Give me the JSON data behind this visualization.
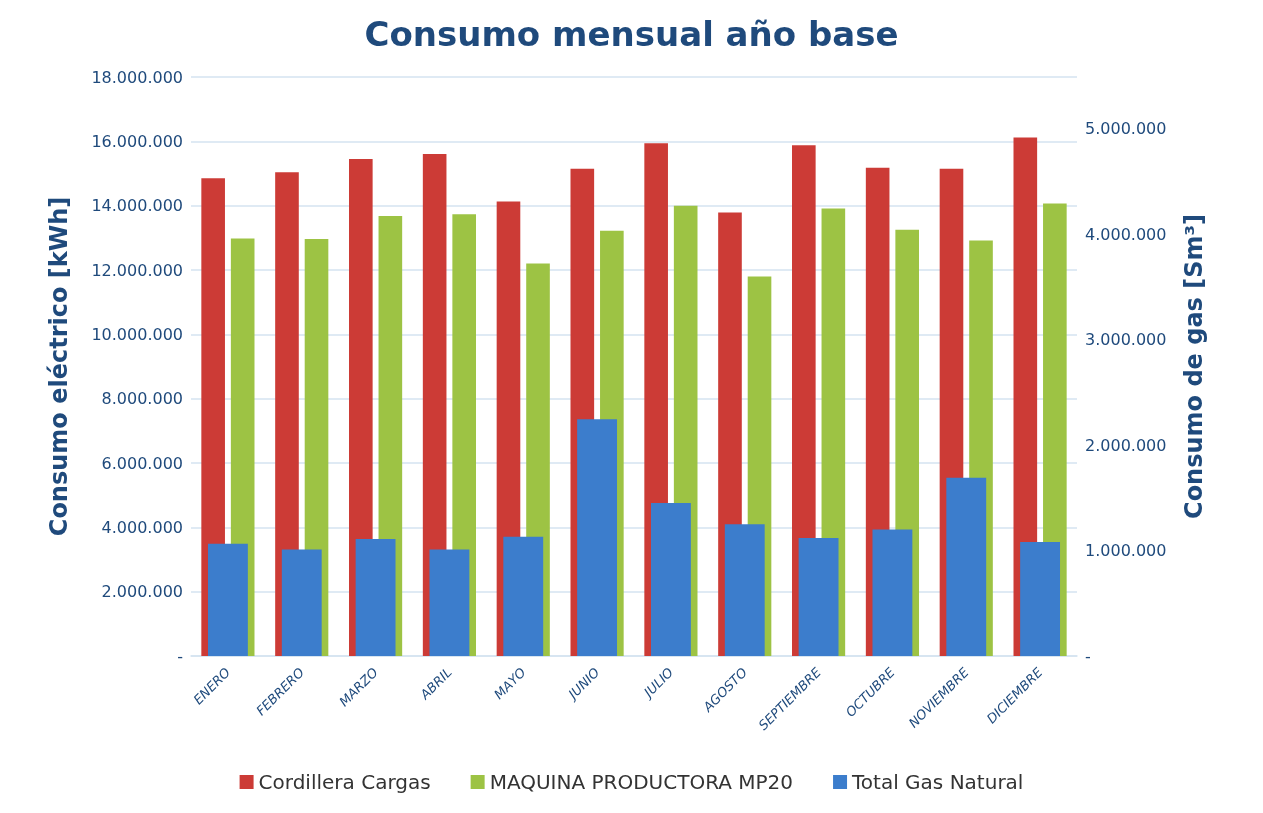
{
  "chart_data": {
    "type": "bar",
    "title": "Consumo mensual año base",
    "ylabel": "Consumo eléctrico [kWh]",
    "y2label": "Consumo de gas [Sm³]",
    "categories": [
      "ENERO",
      "FEBRERO",
      "MARZO",
      "ABRIL",
      "MAYO",
      "JUNIO",
      "JULIO",
      "AGOSTO",
      "SEPTIEMBRE",
      "OCTUBRE",
      "NOVIEMBRE",
      "DICIEMBRE"
    ],
    "series": [
      {
        "name": "Cordillera Cargas",
        "color": "#cc3b36",
        "values": [
          14850000,
          15040000,
          15450000,
          15610000,
          14130000,
          15150000,
          15940000,
          13790000,
          15880000,
          15180000,
          15150000,
          16120000
        ]
      },
      {
        "name": "MAQUINA PRODUCTORA MP20",
        "color": "#9dc344",
        "values": [
          12980000,
          12960000,
          13680000,
          13730000,
          12200000,
          13220000,
          14000000,
          11800000,
          13910000,
          13250000,
          12920000,
          14070000
        ]
      },
      {
        "name": "Total Gas Natural",
        "color": "#3c7dcc",
        "axis": "y2",
        "values": [
          1065000,
          1010000,
          1110000,
          1010000,
          1130000,
          2245000,
          1450000,
          1250000,
          1120000,
          1200000,
          1690000,
          1080000
        ]
      }
    ],
    "ylim": [
      0,
      18000000
    ],
    "yticks": [
      {
        "value": 0,
        "label": "-"
      },
      {
        "value": 2000000,
        "label": "2.000.000"
      },
      {
        "value": 4000000,
        "label": "4.000.000"
      },
      {
        "value": 6000000,
        "label": "6.000.000"
      },
      {
        "value": 8000000,
        "label": "8.000.000"
      },
      {
        "value": 10000000,
        "label": "10.000.000"
      },
      {
        "value": 12000000,
        "label": "12.000.000"
      },
      {
        "value": 14000000,
        "label": "14.000.000"
      },
      {
        "value": 16000000,
        "label": "16.000.000"
      },
      {
        "value": 18000000,
        "label": "18.000.000"
      }
    ],
    "y2lim": [
      0,
      5490000
    ],
    "y2ticks": [
      {
        "value": 0,
        "label": "-"
      },
      {
        "value": 1000000,
        "label": "1.000.000"
      },
      {
        "value": 2000000,
        "label": "2.000.000"
      },
      {
        "value": 3000000,
        "label": "3.000.000"
      },
      {
        "value": 4000000,
        "label": "4.000.000"
      },
      {
        "value": 5000000,
        "label": "5.000.000"
      }
    ],
    "grid": "y",
    "legend": "bottom"
  }
}
